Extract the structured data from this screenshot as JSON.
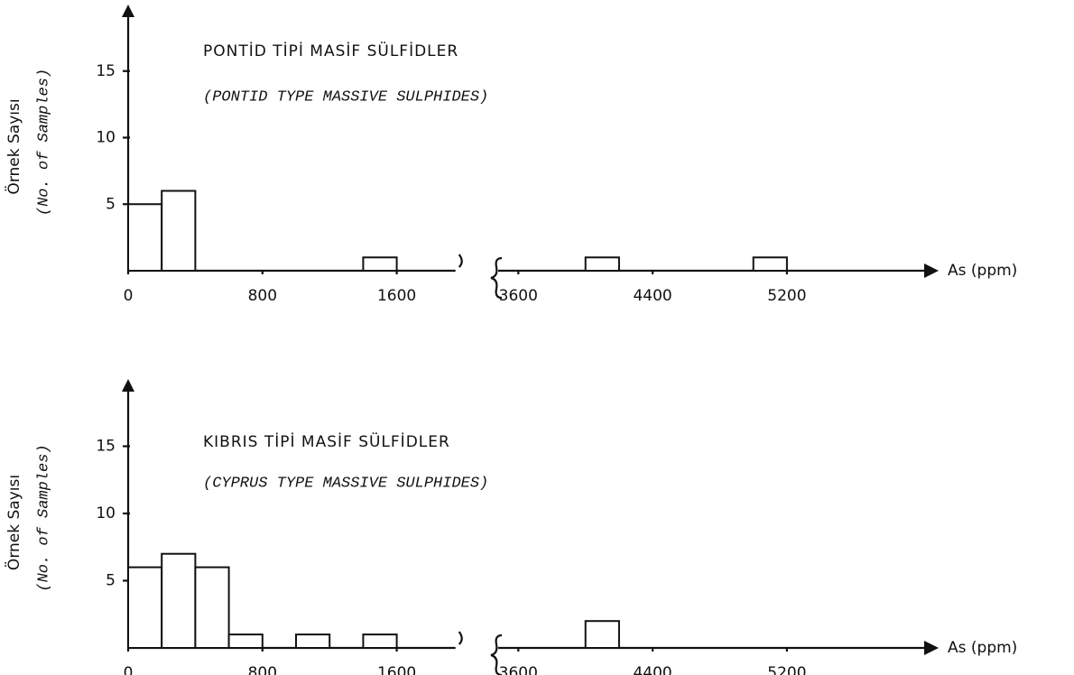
{
  "chart_data": [
    {
      "type": "histogram",
      "title": "PONTİD TİPİ MASİF SÜLFİDLER",
      "subtitle": "(PONTID TYPE MASSIVE SULPHIDES)",
      "y_label": "Örnek Sayısı",
      "y_label_en": "(No. of Samples)",
      "x_label": "As (ppm)",
      "bins": [
        [
          0,
          200
        ],
        [
          200,
          400
        ],
        [
          1400,
          1600
        ],
        [
          4000,
          4200
        ],
        [
          5000,
          5200
        ]
      ],
      "counts": [
        5,
        6,
        1,
        1,
        1
      ],
      "xlim": [
        [
          0,
          1950
        ],
        [
          3480,
          6080
        ]
      ],
      "xticks": [
        0,
        800,
        1600,
        3600,
        4400,
        5200
      ],
      "ylim": [
        0,
        20
      ],
      "yticks": [
        5,
        10,
        15
      ]
    },
    {
      "type": "histogram",
      "title": "KIBRIS TİPİ MASİF SÜLFİDLER",
      "subtitle": "(CYPRUS TYPE MASSIVE SULPHIDES)",
      "y_label": "Örnek Sayısı",
      "y_label_en": "(No. of Samples)",
      "x_label": "As (ppm)",
      "bins": [
        [
          0,
          200
        ],
        [
          200,
          400
        ],
        [
          400,
          600
        ],
        [
          600,
          800
        ],
        [
          1000,
          1200
        ],
        [
          1400,
          1600
        ],
        [
          4000,
          4200
        ]
      ],
      "counts": [
        6,
        7,
        6,
        1,
        1,
        1,
        2
      ],
      "xlim": [
        [
          0,
          1950
        ],
        [
          3480,
          6080
        ]
      ],
      "xticks": [
        0,
        800,
        1600,
        3600,
        4400,
        5200
      ],
      "ylim": [
        0,
        20
      ],
      "yticks": [
        5,
        10,
        15
      ]
    }
  ]
}
